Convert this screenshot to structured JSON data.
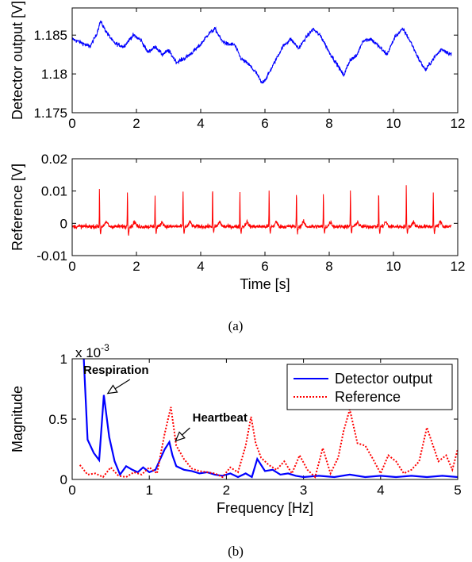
{
  "captions": {
    "a": "(a)",
    "b": "(b)"
  },
  "chart_data": [
    {
      "type": "line",
      "id": "detector",
      "xlabel": "",
      "ylabel": "Detector output [V]",
      "xlim": [
        0,
        12
      ],
      "ylim": [
        1.175,
        1.1885
      ],
      "xticks": [
        "0",
        "2",
        "4",
        "6",
        "8",
        "10",
        "12"
      ],
      "yticks": [
        "1.175",
        "1.18",
        "1.185"
      ],
      "ytick_values": [
        1.175,
        1.18,
        1.185
      ],
      "color": "#0000ff",
      "series": [
        {
          "x": [
            0,
            0.3,
            0.55,
            0.75,
            0.88,
            1.05,
            1.3,
            1.6,
            1.9,
            2.15,
            2.35,
            2.6,
            2.8,
            3.0,
            3.25,
            3.5,
            3.75,
            4.0,
            4.25,
            4.45,
            4.65,
            4.85,
            5.05,
            5.25,
            5.5,
            5.75,
            5.9,
            6.05,
            6.3,
            6.55,
            6.8,
            7.05,
            7.3,
            7.5,
            7.75,
            8.0,
            8.25,
            8.45,
            8.65,
            8.85,
            9.05,
            9.3,
            9.55,
            9.8,
            10.05,
            10.3,
            10.55,
            10.8,
            11.0,
            11.25,
            11.5,
            11.8
          ],
          "y": [
            1.1845,
            1.184,
            1.1835,
            1.185,
            1.1868,
            1.1855,
            1.184,
            1.1835,
            1.185,
            1.1843,
            1.1828,
            1.1835,
            1.1825,
            1.183,
            1.1815,
            1.182,
            1.1828,
            1.1838,
            1.1852,
            1.1858,
            1.1843,
            1.1838,
            1.1838,
            1.182,
            1.1812,
            1.18,
            1.1788,
            1.1795,
            1.1815,
            1.1835,
            1.1845,
            1.1833,
            1.1848,
            1.1858,
            1.1848,
            1.1828,
            1.1812,
            1.1798,
            1.1818,
            1.1823,
            1.1843,
            1.1845,
            1.1835,
            1.1825,
            1.1848,
            1.1858,
            1.184,
            1.1818,
            1.1805,
            1.182,
            1.1832,
            1.1825
          ]
        }
      ]
    },
    {
      "type": "line",
      "id": "reference",
      "xlabel": "Time [s]",
      "ylabel": "Reference [V]",
      "xlim": [
        0,
        12
      ],
      "ylim": [
        -0.01,
        0.02
      ],
      "xticks": [
        "0",
        "2",
        "4",
        "6",
        "8",
        "10",
        "12"
      ],
      "yticks": [
        "-0.01",
        "0",
        "0.01",
        "0.02"
      ],
      "ytick_values": [
        -0.01,
        0,
        0.01,
        0.02
      ],
      "color": "#ff0000",
      "peak_times": [
        0.85,
        1.72,
        2.58,
        3.45,
        4.37,
        5.22,
        6.13,
        6.98,
        7.82,
        8.66,
        9.54,
        10.4,
        11.24
      ],
      "peak_values": [
        0.0122,
        0.0115,
        0.0095,
        0.0115,
        0.0125,
        0.0108,
        0.0112,
        0.0115,
        0.0105,
        0.0118,
        0.0115,
        0.0125,
        0.0112
      ],
      "baseline": -0.001,
      "series": []
    },
    {
      "type": "line",
      "id": "spectrum",
      "xlabel": "Frequency [Hz]",
      "ylabel": "Magnitude",
      "y_multiplier": "x 10",
      "y_multiplier_exp": "-3",
      "xlim": [
        0,
        5
      ],
      "ylim": [
        0,
        1
      ],
      "xticks": [
        "0",
        "1",
        "2",
        "3",
        "4",
        "5"
      ],
      "yticks": [
        "0",
        "0.5",
        "1"
      ],
      "ytick_values": [
        0,
        0.5,
        1
      ],
      "legend_position": "top-right",
      "series": [
        {
          "name": "Detector output",
          "color": "#0000ff",
          "style": "solid",
          "x": [
            0.15,
            0.2,
            0.28,
            0.35,
            0.41,
            0.48,
            0.55,
            0.62,
            0.7,
            0.78,
            0.85,
            0.92,
            1.0,
            1.08,
            1.15,
            1.2,
            1.26,
            1.3,
            1.35,
            1.45,
            1.55,
            1.65,
            1.75,
            1.85,
            1.95,
            2.05,
            2.15,
            2.25,
            2.33,
            2.4,
            2.5,
            2.6,
            2.7,
            2.8,
            2.9,
            3.0,
            3.2,
            3.4,
            3.6,
            3.8,
            4.0,
            4.2,
            4.4,
            4.6,
            4.8,
            5.0
          ],
          "y": [
            1.0,
            0.33,
            0.22,
            0.16,
            0.7,
            0.35,
            0.15,
            0.04,
            0.11,
            0.08,
            0.06,
            0.1,
            0.06,
            0.08,
            0.18,
            0.25,
            0.31,
            0.2,
            0.11,
            0.08,
            0.07,
            0.05,
            0.06,
            0.04,
            0.03,
            0.05,
            0.02,
            0.05,
            0.02,
            0.17,
            0.07,
            0.08,
            0.04,
            0.05,
            0.03,
            0.02,
            0.03,
            0.02,
            0.04,
            0.02,
            0.03,
            0.02,
            0.03,
            0.02,
            0.03,
            0.02
          ]
        },
        {
          "name": "Reference",
          "color": "#ff0000",
          "style": "dotted",
          "x": [
            0.1,
            0.2,
            0.3,
            0.4,
            0.5,
            0.6,
            0.7,
            0.8,
            0.9,
            1.0,
            1.1,
            1.2,
            1.28,
            1.35,
            1.45,
            1.55,
            1.65,
            1.75,
            1.85,
            1.95,
            2.05,
            2.15,
            2.25,
            2.32,
            2.38,
            2.45,
            2.55,
            2.65,
            2.75,
            2.85,
            2.95,
            3.05,
            3.15,
            3.25,
            3.35,
            3.45,
            3.52,
            3.6,
            3.7,
            3.8,
            3.9,
            4.0,
            4.1,
            4.2,
            4.3,
            4.4,
            4.5,
            4.6,
            4.68,
            4.75,
            4.85,
            4.93,
            5.0
          ],
          "y": [
            0.12,
            0.04,
            0.05,
            0.02,
            0.1,
            0.03,
            0.02,
            0.06,
            0.04,
            0.1,
            0.05,
            0.38,
            0.6,
            0.28,
            0.17,
            0.09,
            0.07,
            0.06,
            0.05,
            0.02,
            0.1,
            0.06,
            0.28,
            0.52,
            0.3,
            0.18,
            0.12,
            0.08,
            0.15,
            0.05,
            0.2,
            0.08,
            0.02,
            0.26,
            0.05,
            0.18,
            0.4,
            0.58,
            0.3,
            0.28,
            0.17,
            0.05,
            0.2,
            0.15,
            0.05,
            0.08,
            0.15,
            0.43,
            0.28,
            0.15,
            0.2,
            0.08,
            0.25
          ]
        }
      ],
      "annotations": [
        {
          "text": "Respiration",
          "x": 0.42,
          "y": 0.7
        },
        {
          "text": "Heartbeat",
          "x": 1.3,
          "y": 0.3
        }
      ]
    }
  ]
}
